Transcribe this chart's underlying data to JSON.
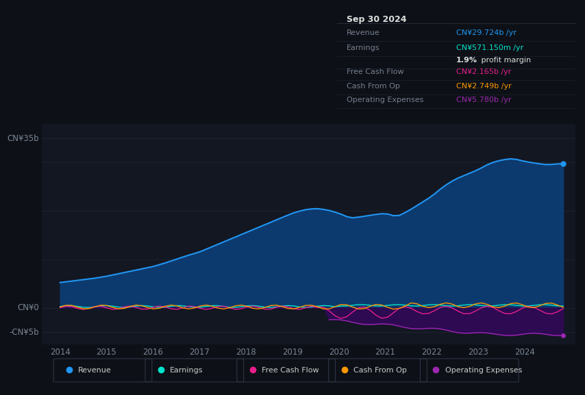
{
  "background_color": "#0d1117",
  "plot_bg_color": "#131722",
  "grid_color": "#1e2530",
  "ylabel_35b": "CN¥35b",
  "ylabel_0": "CN¥0",
  "ylabel_neg5b": "-CN¥5b",
  "ylim": [
    -7500000000,
    38000000000
  ],
  "xlim_start": 2013.6,
  "xlim_end": 2025.1,
  "xticks": [
    2014,
    2015,
    2016,
    2017,
    2018,
    2019,
    2020,
    2021,
    2022,
    2023,
    2024
  ],
  "colors": {
    "revenue": "#2196f3",
    "earnings": "#00e5cc",
    "free_cash_flow": "#e91e8c",
    "cash_from_op": "#ff9800",
    "operating_expenses": "#9c27b0",
    "revenue_fill": "#0d3a6e",
    "op_exp_fill": "#2d0a52"
  },
  "legend": [
    {
      "label": "Revenue",
      "color": "#2196f3"
    },
    {
      "label": "Earnings",
      "color": "#00e5cc"
    },
    {
      "label": "Free Cash Flow",
      "color": "#e91e8c"
    },
    {
      "label": "Cash From Op",
      "color": "#ff9800"
    },
    {
      "label": "Operating Expenses",
      "color": "#9c27b0"
    }
  ]
}
